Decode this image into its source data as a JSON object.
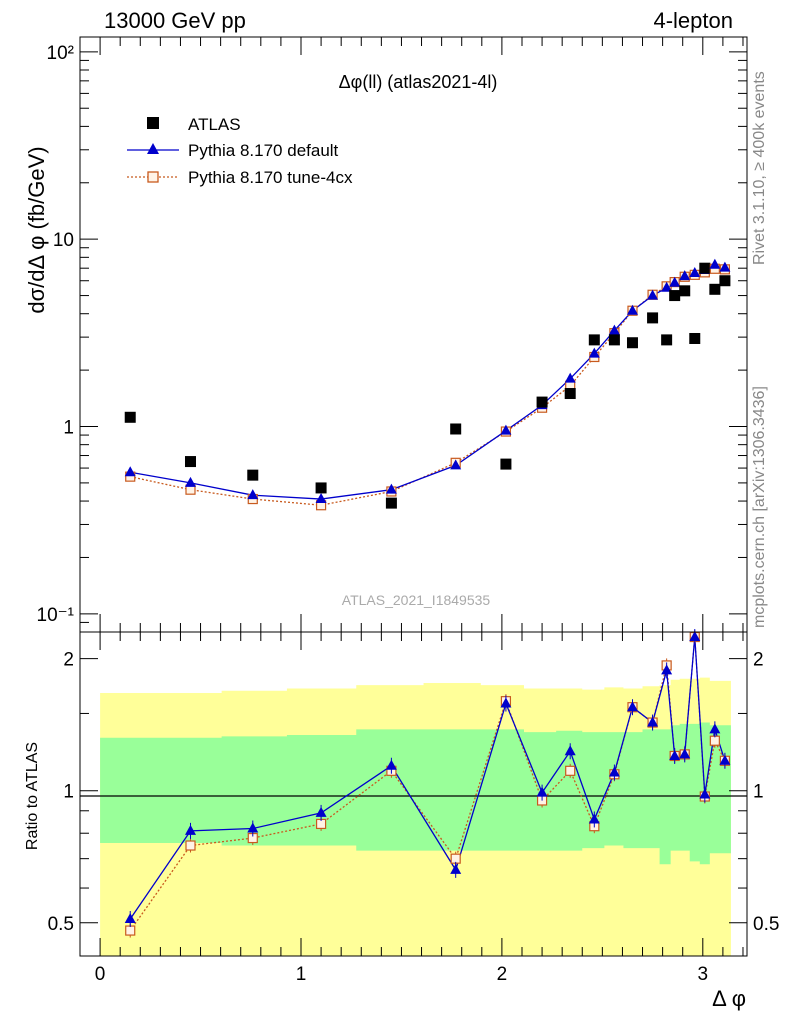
{
  "header": {
    "left": "13000 GeV pp",
    "right": "4-lepton"
  },
  "side_labels": {
    "rivet": "Rivet 3.1.10, ≥ 400k events",
    "mcplots": "mcplots.cern.ch [arXiv:1306.3436]"
  },
  "watermark": "ATLAS_2021_I1849535",
  "colors": {
    "data": "#000000",
    "default": "#0000cc",
    "tune": "#c85a1e",
    "band_yellow": "#ffff99",
    "band_green": "#99ff99"
  },
  "chart_data": [
    {
      "type": "scatter",
      "title": "Δφ(ll) (atlas2021-4l)",
      "ylabel": "dσ/dΔ φ (fb/GeV)",
      "xlabel": "",
      "yscale": "log",
      "xlim": [
        -0.1,
        3.22
      ],
      "ylim": [
        0.08,
        120
      ],
      "ytick_labels": [
        "10⁻¹",
        "1",
        "10",
        "10²"
      ],
      "legend_position": "top-left",
      "x": [
        0.15,
        0.45,
        0.76,
        1.1,
        1.45,
        1.77,
        2.02,
        2.2,
        2.34,
        2.46,
        2.56,
        2.65,
        2.75,
        2.82,
        2.86,
        2.91,
        2.96,
        3.01,
        3.06,
        3.11
      ],
      "series": [
        {
          "name": "ATLAS",
          "marker": "square",
          "values": [
            1.12,
            0.65,
            0.55,
            0.47,
            0.39,
            0.97,
            0.63,
            1.35,
            1.5,
            2.9,
            2.9,
            2.8,
            3.8,
            2.9,
            5.0,
            5.3,
            2.95,
            7.0,
            5.4,
            6.0
          ]
        },
        {
          "name": "Pythia 8.170 default",
          "marker": "triangle",
          "values": [
            0.57,
            0.5,
            0.43,
            0.41,
            0.46,
            0.62,
            0.95,
            1.3,
            1.8,
            2.45,
            3.25,
            4.15,
            5.0,
            5.5,
            5.85,
            6.35,
            6.6,
            6.85,
            7.3,
            7.05
          ]
        },
        {
          "name": "Pythia 8.170 tune-4cx",
          "marker": "open-square",
          "values": [
            0.54,
            0.46,
            0.41,
            0.38,
            0.45,
            0.64,
            0.94,
            1.26,
            1.65,
            2.35,
            3.15,
            4.15,
            5.05,
            5.6,
            5.9,
            6.3,
            6.45,
            6.65,
            6.95,
            6.9
          ]
        }
      ]
    },
    {
      "type": "scatter",
      "ylabel": "Ratio to ATLAS",
      "xlabel": "Δ φ",
      "yscale": "log",
      "xlim": [
        -0.1,
        3.22
      ],
      "ylim": [
        0.42,
        2.3
      ],
      "xticks": [
        0,
        1,
        2,
        3
      ],
      "yticks": [
        0.5,
        1,
        2
      ],
      "ytick_labels": [
        "0.5",
        "1",
        "2"
      ],
      "x": [
        0.15,
        0.45,
        0.76,
        1.1,
        1.45,
        1.77,
        2.02,
        2.2,
        2.34,
        2.46,
        2.56,
        2.65,
        2.75,
        2.82,
        2.86,
        2.91,
        2.96,
        3.01,
        3.06,
        3.11
      ],
      "series": [
        {
          "name": "Pythia 8.170 default",
          "values": [
            0.51,
            0.81,
            0.82,
            0.89,
            1.14,
            0.66,
            1.58,
            0.99,
            1.23,
            0.86,
            1.1,
            1.55,
            1.43,
            1.88,
            1.2,
            1.21,
            2.24,
            0.98,
            1.38,
            1.17
          ]
        },
        {
          "name": "Pythia 8.170 tune-4cx",
          "values": [
            0.48,
            0.75,
            0.78,
            0.84,
            1.11,
            0.7,
            1.6,
            0.95,
            1.11,
            0.83,
            1.09,
            1.55,
            1.43,
            1.93,
            1.2,
            1.21,
            2.24,
            0.97,
            1.3,
            1.17
          ]
        }
      ],
      "bands": {
        "green_low": [
          0.76,
          0.76,
          0.75,
          0.75,
          0.73,
          0.73,
          0.73,
          0.73,
          0.73,
          0.74,
          0.75,
          0.74,
          0.74,
          0.68,
          0.73,
          0.73,
          0.69,
          0.68,
          0.72,
          0.72
        ],
        "green_high": [
          1.32,
          1.32,
          1.33,
          1.34,
          1.38,
          1.38,
          1.38,
          1.36,
          1.37,
          1.36,
          1.36,
          1.36,
          1.38,
          1.38,
          1.41,
          1.42,
          1.42,
          1.43,
          1.41,
          1.41
        ],
        "yellow_low": [
          0.41,
          0.41,
          0.4,
          0.4,
          0.36,
          0.36,
          0.36,
          0.38,
          0.36,
          0.37,
          0.37,
          0.37,
          0.38,
          0.35,
          0.34,
          0.36,
          0.36,
          0.36,
          0.36,
          0.36
        ],
        "yellow_high": [
          1.67,
          1.67,
          1.69,
          1.71,
          1.74,
          1.76,
          1.74,
          1.71,
          1.71,
          1.7,
          1.72,
          1.71,
          1.73,
          1.74,
          1.79,
          1.8,
          1.8,
          1.81,
          1.78,
          1.78
        ]
      }
    }
  ]
}
